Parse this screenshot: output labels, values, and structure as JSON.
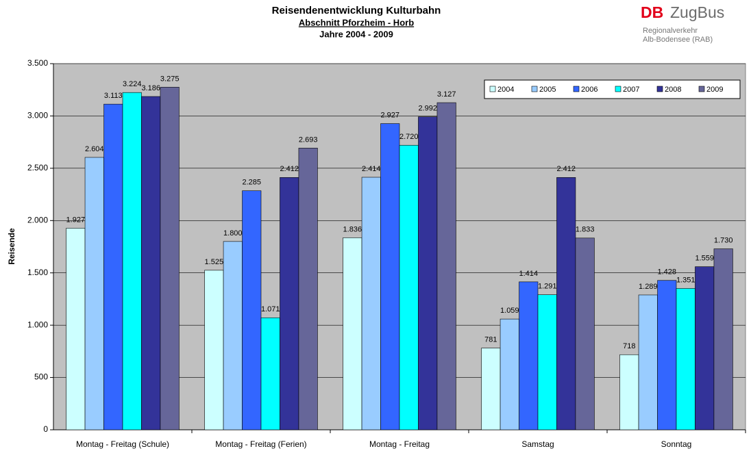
{
  "chart_data": {
    "type": "bar",
    "title": "Reisendenentwicklung Kulturbahn",
    "subtitle": "Abschnitt Pforzheim - Horb",
    "period": "Jahre 2004 - 2009",
    "ylabel": "Reisende",
    "categories": [
      "Montag - Freitag (Schule)",
      "Montag - Freitag (Ferien)",
      "Montag - Freitag",
      "Samstag",
      "Sonntag"
    ],
    "series": [
      {
        "name": "2004",
        "color": "#ccffff",
        "values": [
          1927,
          1525,
          1836,
          781,
          718
        ],
        "value_labels": [
          "1.927",
          "1.525",
          "1.836",
          "781",
          "718"
        ]
      },
      {
        "name": "2005",
        "color": "#99ccff",
        "values": [
          2604,
          1800,
          2414,
          1059,
          1289
        ],
        "value_labels": [
          "2.604",
          "1.800",
          "2.414",
          "1.059",
          "1.289"
        ]
      },
      {
        "name": "2006",
        "color": "#3366ff",
        "values": [
          3113,
          2285,
          2927,
          1414,
          1428
        ],
        "value_labels": [
          "3.113",
          "2.285",
          "2.927",
          "1.414",
          "1.428"
        ]
      },
      {
        "name": "2007",
        "color": "#00ffff",
        "values": [
          3224,
          1071,
          2720,
          1291,
          1351
        ],
        "value_labels": [
          "3.224",
          "1.071",
          "2.720",
          "1.291",
          "1.351"
        ]
      },
      {
        "name": "2008",
        "color": "#333399",
        "values": [
          3186,
          2412,
          2992,
          2412,
          1559
        ],
        "value_labels": [
          "3.186",
          "2.412",
          "2.992",
          "2.412",
          "1.559"
        ]
      },
      {
        "name": "2009",
        "color": "#666699",
        "values": [
          3275,
          2693,
          3127,
          1833,
          1730
        ],
        "value_labels": [
          "3.275",
          "2.693",
          "3.127",
          "1.833",
          "1.730"
        ]
      }
    ],
    "ylim": [
      0,
      3500
    ],
    "yticks": [
      0,
      500,
      {
        "value": 1000,
        "label": "1.000"
      },
      {
        "value": 1500,
        "label": "1.500"
      },
      {
        "value": 2000,
        "label": "2.000"
      },
      {
        "value": 2500,
        "label": "2.500"
      },
      {
        "value": 3000,
        "label": "3.000"
      },
      {
        "value": 3500,
        "label": "3.500"
      }
    ],
    "grid": true,
    "legend": "upper right",
    "background": "#c0c0c0"
  },
  "logo": {
    "brand": "DB",
    "name": "ZugBus",
    "lines": [
      "Regionalverkehr",
      "Alb-Bodensee (RAB)"
    ]
  }
}
